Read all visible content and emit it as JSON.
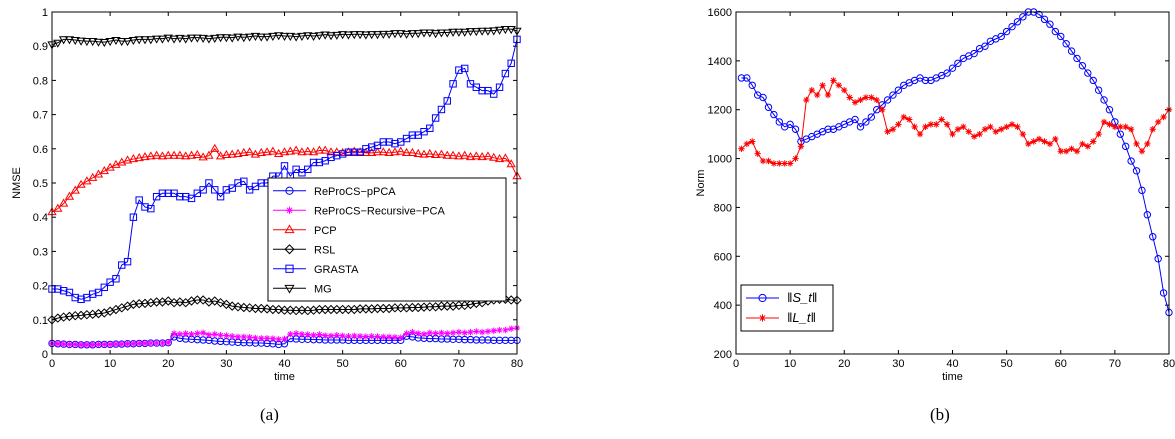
{
  "captions": [
    "(a)",
    "(b)"
  ],
  "chart_data": [
    {
      "type": "line",
      "xlabel": "time",
      "ylabel": "NMSE",
      "xlim": [
        0,
        80
      ],
      "ylim": [
        0,
        1
      ],
      "xticks": [
        0,
        10,
        20,
        30,
        40,
        50,
        60,
        70,
        80
      ],
      "yticks": [
        0,
        0.1,
        0.2,
        0.3,
        0.4,
        0.5,
        0.6,
        0.7,
        0.8,
        0.9,
        1
      ],
      "ytick_labels": [
        "0",
        "0.1",
        "0.2",
        "0.3",
        "0.4",
        "0.5",
        "0.6",
        "0.7",
        "0.8",
        "0.9",
        "1"
      ],
      "legend_position": "right",
      "x": [
        0,
        1,
        2,
        3,
        4,
        5,
        6,
        7,
        8,
        9,
        10,
        11,
        12,
        13,
        14,
        15,
        16,
        17,
        18,
        19,
        20,
        21,
        22,
        23,
        24,
        25,
        26,
        27,
        28,
        29,
        30,
        31,
        32,
        33,
        34,
        35,
        36,
        37,
        38,
        39,
        40,
        41,
        42,
        43,
        44,
        45,
        46,
        47,
        48,
        49,
        50,
        51,
        52,
        53,
        54,
        55,
        56,
        57,
        58,
        59,
        60,
        61,
        62,
        63,
        64,
        65,
        66,
        67,
        68,
        69,
        70,
        71,
        72,
        73,
        74,
        75,
        76,
        77,
        78,
        79,
        80
      ],
      "series": [
        {
          "name": "ReProCS−pPCA",
          "color": "#0000ff",
          "marker": "circle",
          "values": [
            0.031,
            0.03,
            0.029,
            0.028,
            0.028,
            0.027,
            0.027,
            0.027,
            0.028,
            0.028,
            0.028,
            0.029,
            0.029,
            0.03,
            0.03,
            0.031,
            0.031,
            0.032,
            0.032,
            0.032,
            0.033,
            0.05,
            0.046,
            0.044,
            0.043,
            0.042,
            0.041,
            0.04,
            0.038,
            0.037,
            0.036,
            0.035,
            0.034,
            0.033,
            0.033,
            0.032,
            0.032,
            0.031,
            0.03,
            0.028,
            0.03,
            0.045,
            0.044,
            0.043,
            0.043,
            0.042,
            0.042,
            0.041,
            0.041,
            0.041,
            0.041,
            0.04,
            0.04,
            0.04,
            0.04,
            0.04,
            0.04,
            0.04,
            0.04,
            0.04,
            0.04,
            0.052,
            0.05,
            0.047,
            0.046,
            0.045,
            0.045,
            0.044,
            0.044,
            0.043,
            0.043,
            0.042,
            0.042,
            0.041,
            0.041,
            0.041,
            0.04,
            0.04,
            0.04,
            0.04,
            0.04
          ]
        },
        {
          "name": "ReProCS−Recursive−PCA",
          "color": "#ff00ff",
          "marker": "star",
          "values": [
            0.031,
            0.03,
            0.029,
            0.028,
            0.028,
            0.027,
            0.027,
            0.027,
            0.028,
            0.028,
            0.028,
            0.029,
            0.029,
            0.03,
            0.03,
            0.031,
            0.031,
            0.032,
            0.032,
            0.032,
            0.033,
            0.06,
            0.058,
            0.06,
            0.058,
            0.06,
            0.062,
            0.056,
            0.058,
            0.055,
            0.054,
            0.052,
            0.05,
            0.05,
            0.049,
            0.047,
            0.046,
            0.046,
            0.045,
            0.043,
            0.044,
            0.058,
            0.06,
            0.058,
            0.057,
            0.055,
            0.057,
            0.054,
            0.053,
            0.055,
            0.053,
            0.052,
            0.053,
            0.052,
            0.051,
            0.052,
            0.051,
            0.05,
            0.05,
            0.049,
            0.048,
            0.06,
            0.064,
            0.06,
            0.058,
            0.062,
            0.06,
            0.062,
            0.06,
            0.062,
            0.064,
            0.062,
            0.064,
            0.066,
            0.064,
            0.066,
            0.068,
            0.07,
            0.07,
            0.074,
            0.076
          ]
        },
        {
          "name": "PCP",
          "color": "#ff0000",
          "marker": "triangle-up",
          "values": [
            0.415,
            0.425,
            0.44,
            0.46,
            0.478,
            0.495,
            0.505,
            0.515,
            0.525,
            0.535,
            0.545,
            0.553,
            0.56,
            0.566,
            0.57,
            0.573,
            0.576,
            0.578,
            0.58,
            0.578,
            0.58,
            0.58,
            0.58,
            0.578,
            0.58,
            0.582,
            0.575,
            0.58,
            0.6,
            0.578,
            0.582,
            0.583,
            0.585,
            0.588,
            0.59,
            0.583,
            0.588,
            0.59,
            0.592,
            0.585,
            0.59,
            0.592,
            0.595,
            0.59,
            0.592,
            0.59,
            0.595,
            0.595,
            0.59,
            0.59,
            0.588,
            0.59,
            0.592,
            0.59,
            0.588,
            0.588,
            0.59,
            0.59,
            0.588,
            0.59,
            0.592,
            0.588,
            0.588,
            0.585,
            0.583,
            0.585,
            0.582,
            0.583,
            0.58,
            0.58,
            0.578,
            0.58,
            0.576,
            0.578,
            0.576,
            0.578,
            0.574,
            0.57,
            0.572,
            0.555,
            0.52
          ]
        },
        {
          "name": "RSL",
          "color": "#000000",
          "marker": "diamond",
          "values": [
            0.1,
            0.105,
            0.108,
            0.11,
            0.112,
            0.113,
            0.115,
            0.116,
            0.118,
            0.12,
            0.125,
            0.13,
            0.135,
            0.14,
            0.145,
            0.147,
            0.148,
            0.15,
            0.152,
            0.152,
            0.155,
            0.15,
            0.152,
            0.15,
            0.155,
            0.158,
            0.158,
            0.152,
            0.155,
            0.15,
            0.145,
            0.14,
            0.138,
            0.136,
            0.135,
            0.133,
            0.133,
            0.132,
            0.13,
            0.13,
            0.128,
            0.128,
            0.127,
            0.128,
            0.127,
            0.128,
            0.13,
            0.13,
            0.13,
            0.13,
            0.13,
            0.13,
            0.13,
            0.132,
            0.132,
            0.132,
            0.133,
            0.133,
            0.133,
            0.135,
            0.135,
            0.135,
            0.136,
            0.136,
            0.137,
            0.138,
            0.138,
            0.14,
            0.14,
            0.14,
            0.142,
            0.142,
            0.145,
            0.148,
            0.15,
            0.155,
            0.158,
            0.16,
            0.16,
            0.158,
            0.157
          ]
        },
        {
          "name": "GRASTA",
          "color": "#0000ff",
          "marker": "square",
          "values": [
            0.19,
            0.19,
            0.185,
            0.18,
            0.165,
            0.16,
            0.165,
            0.175,
            0.18,
            0.195,
            0.21,
            0.22,
            0.26,
            0.27,
            0.4,
            0.45,
            0.43,
            0.425,
            0.46,
            0.47,
            0.47,
            0.47,
            0.46,
            0.46,
            0.455,
            0.47,
            0.48,
            0.5,
            0.48,
            0.46,
            0.48,
            0.485,
            0.5,
            0.505,
            0.48,
            0.49,
            0.5,
            0.5,
            0.52,
            0.52,
            0.55,
            0.52,
            0.54,
            0.53,
            0.54,
            0.56,
            0.56,
            0.565,
            0.575,
            0.58,
            0.585,
            0.59,
            0.59,
            0.59,
            0.6,
            0.605,
            0.61,
            0.62,
            0.62,
            0.615,
            0.62,
            0.63,
            0.64,
            0.64,
            0.65,
            0.66,
            0.69,
            0.715,
            0.74,
            0.79,
            0.83,
            0.835,
            0.79,
            0.78,
            0.77,
            0.77,
            0.76,
            0.78,
            0.82,
            0.85,
            0.92
          ]
        },
        {
          "name": "MG",
          "color": "#000000",
          "marker": "triangle-down",
          "values": [
            0.905,
            0.91,
            0.92,
            0.92,
            0.918,
            0.916,
            0.915,
            0.915,
            0.913,
            0.912,
            0.915,
            0.918,
            0.915,
            0.915,
            0.918,
            0.92,
            0.92,
            0.92,
            0.922,
            0.922,
            0.925,
            0.922,
            0.924,
            0.922,
            0.925,
            0.925,
            0.924,
            0.922,
            0.924,
            0.926,
            0.926,
            0.925,
            0.928,
            0.926,
            0.928,
            0.93,
            0.928,
            0.928,
            0.93,
            0.932,
            0.93,
            0.93,
            0.928,
            0.93,
            0.932,
            0.93,
            0.932,
            0.934,
            0.932,
            0.933,
            0.935,
            0.934,
            0.935,
            0.935,
            0.934,
            0.935,
            0.935,
            0.936,
            0.936,
            0.938,
            0.938,
            0.936,
            0.938,
            0.938,
            0.94,
            0.94,
            0.938,
            0.94,
            0.94,
            0.942,
            0.942,
            0.942,
            0.944,
            0.944,
            0.945,
            0.945,
            0.946,
            0.948,
            0.95,
            0.95,
            0.945
          ]
        }
      ]
    },
    {
      "type": "line",
      "xlabel": "time",
      "ylabel": "Norm",
      "xlim": [
        0,
        80
      ],
      "ylim": [
        200,
        1600
      ],
      "xticks": [
        0,
        10,
        20,
        30,
        40,
        50,
        60,
        70,
        80
      ],
      "yticks": [
        200,
        400,
        600,
        800,
        1000,
        1200,
        1400,
        1600
      ],
      "ytick_labels": [
        "200",
        "400",
        "600",
        "800",
        "1000",
        "1200",
        "1400",
        "1600"
      ],
      "legend_position": "bottom-left",
      "x": [
        1,
        2,
        3,
        4,
        5,
        6,
        7,
        8,
        9,
        10,
        11,
        12,
        13,
        14,
        15,
        16,
        17,
        18,
        19,
        20,
        21,
        22,
        23,
        24,
        25,
        26,
        27,
        28,
        29,
        30,
        31,
        32,
        33,
        34,
        35,
        36,
        37,
        38,
        39,
        40,
        41,
        42,
        43,
        44,
        45,
        46,
        47,
        48,
        49,
        50,
        51,
        52,
        53,
        54,
        55,
        56,
        57,
        58,
        59,
        60,
        61,
        62,
        63,
        64,
        65,
        66,
        67,
        68,
        69,
        70,
        71,
        72,
        73,
        74,
        75,
        76,
        77,
        78,
        79,
        80
      ],
      "series": [
        {
          "name": "‖S_t‖",
          "color": "#0000ff",
          "marker": "circle",
          "values": [
            1330,
            1330,
            1300,
            1260,
            1250,
            1210,
            1180,
            1150,
            1130,
            1140,
            1120,
            1070,
            1080,
            1090,
            1100,
            1110,
            1120,
            1120,
            1130,
            1140,
            1150,
            1160,
            1130,
            1150,
            1170,
            1200,
            1220,
            1240,
            1260,
            1280,
            1300,
            1310,
            1320,
            1330,
            1320,
            1320,
            1330,
            1340,
            1350,
            1370,
            1390,
            1410,
            1420,
            1430,
            1450,
            1460,
            1480,
            1490,
            1500,
            1520,
            1540,
            1560,
            1580,
            1600,
            1600,
            1590,
            1570,
            1550,
            1520,
            1500,
            1470,
            1440,
            1410,
            1380,
            1350,
            1320,
            1280,
            1240,
            1200,
            1150,
            1100,
            1050,
            990,
            950,
            870,
            770,
            680,
            590,
            450,
            370
          ]
        },
        {
          "name": "‖L_t‖",
          "color": "#ff0000",
          "marker": "star",
          "values": [
            1040,
            1060,
            1070,
            1020,
            990,
            990,
            980,
            980,
            980,
            980,
            1000,
            1050,
            1240,
            1280,
            1260,
            1300,
            1260,
            1320,
            1300,
            1280,
            1250,
            1230,
            1240,
            1250,
            1250,
            1240,
            1200,
            1110,
            1120,
            1140,
            1170,
            1160,
            1130,
            1100,
            1130,
            1140,
            1140,
            1160,
            1140,
            1100,
            1120,
            1130,
            1110,
            1090,
            1100,
            1120,
            1130,
            1110,
            1120,
            1130,
            1140,
            1130,
            1100,
            1060,
            1070,
            1080,
            1070,
            1060,
            1080,
            1030,
            1030,
            1040,
            1030,
            1060,
            1050,
            1070,
            1100,
            1150,
            1140,
            1130,
            1130,
            1130,
            1120,
            1060,
            1030,
            1060,
            1120,
            1150,
            1170,
            1200
          ]
        }
      ]
    }
  ]
}
